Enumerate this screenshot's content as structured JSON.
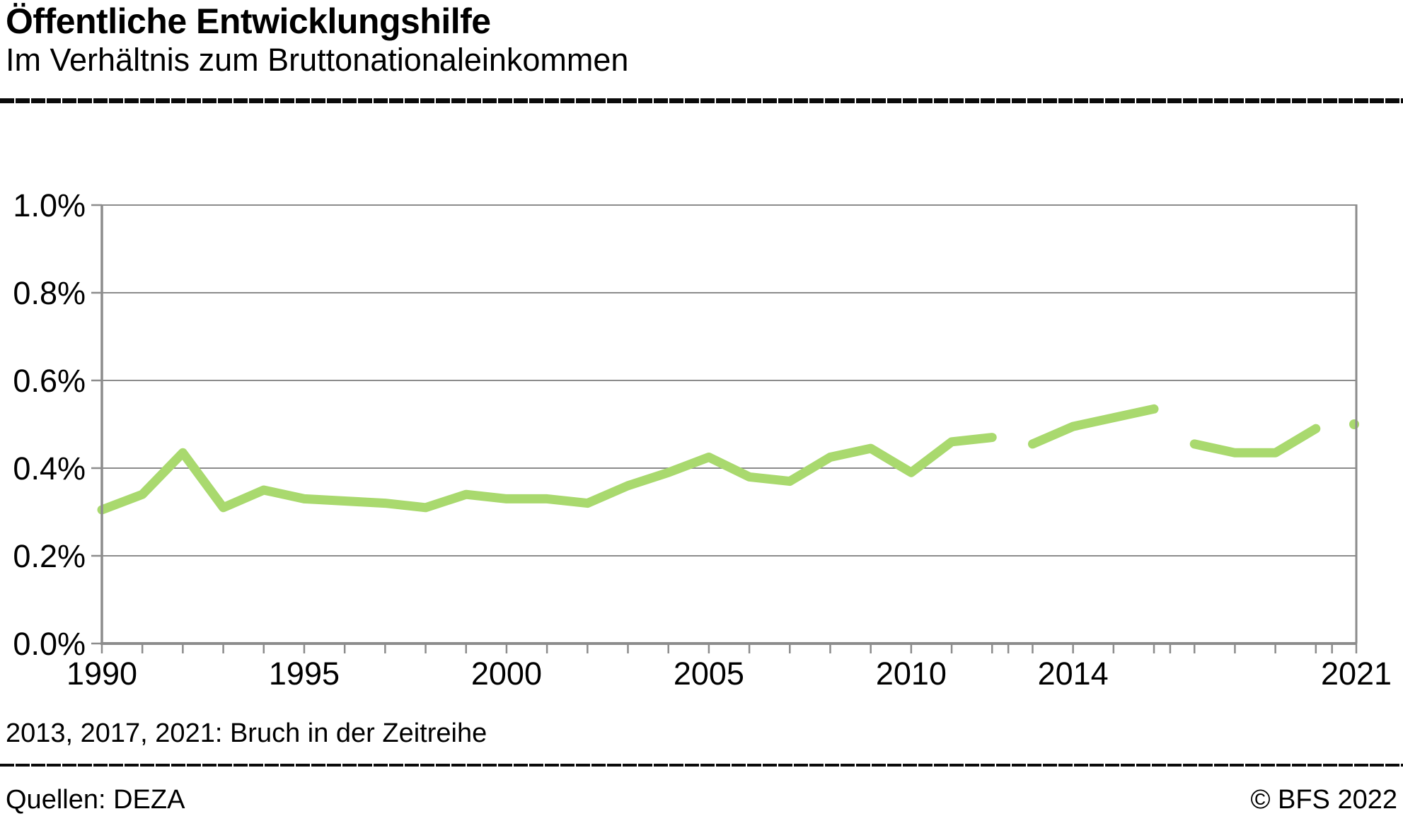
{
  "header": {
    "title": "Öffentliche Entwicklungshilfe",
    "subtitle": "Im Verhältnis zum Bruttonationaleinkommen"
  },
  "note": "2013, 2017, 2021: Bruch in der Zeitreihe",
  "footer": {
    "source": "Quellen: DEZA",
    "copyright": "© BFS 2022"
  },
  "colors": {
    "line": "#a9d96e",
    "axis": "#8c8c8c",
    "grid": "#8c8c8c",
    "text": "#000000",
    "divider": "#0a0a0a",
    "background": "#ffffff"
  },
  "chart_data": {
    "type": "line",
    "title": "Öffentliche Entwicklungshilfe",
    "subtitle": "Im Verhältnis zum Bruttonationaleinkommen",
    "unit": "%",
    "xlim": [
      1990,
      2021
    ],
    "ylim": [
      0,
      1.0
    ],
    "ytick_step": 0.2,
    "ytick_labels": [
      "0.0%",
      "0.2%",
      "0.4%",
      "0.6%",
      "0.8%",
      "1.0%"
    ],
    "xtick_labels": [
      "1990",
      "1995",
      "2000",
      "2005",
      "2010",
      "2014",
      "2021"
    ],
    "xtick_label_years": [
      1990,
      1995,
      2000,
      2005,
      2010,
      2014,
      2021
    ],
    "xtick_every_year": true,
    "grid": true,
    "legend": false,
    "breaks": [
      2013,
      2017,
      2021
    ],
    "series": [
      {
        "color": "#a9d96e",
        "segments": [
          {
            "years": [
              1990,
              1991,
              1992,
              1993,
              1994,
              1995,
              1996,
              1997,
              1998,
              1999,
              2000,
              2001,
              2002,
              2003,
              2004,
              2005,
              2006,
              2007,
              2008,
              2009,
              2010,
              2011,
              2012
            ],
            "values": [
              0.305,
              0.34,
              0.435,
              0.31,
              0.35,
              0.33,
              0.325,
              0.32,
              0.31,
              0.34,
              0.33,
              0.33,
              0.32,
              0.36,
              0.39,
              0.425,
              0.38,
              0.37,
              0.425,
              0.445,
              0.39,
              0.46,
              0.47
            ]
          },
          {
            "years": [
              2013,
              2014,
              2015,
              2016
            ],
            "values": [
              0.455,
              0.495,
              0.515,
              0.535
            ]
          },
          {
            "years": [
              2017,
              2018,
              2019,
              2020
            ],
            "values": [
              0.455,
              0.435,
              0.435,
              0.49
            ]
          },
          {
            "years": [
              2021
            ],
            "values": [
              0.5
            ]
          }
        ]
      }
    ]
  }
}
